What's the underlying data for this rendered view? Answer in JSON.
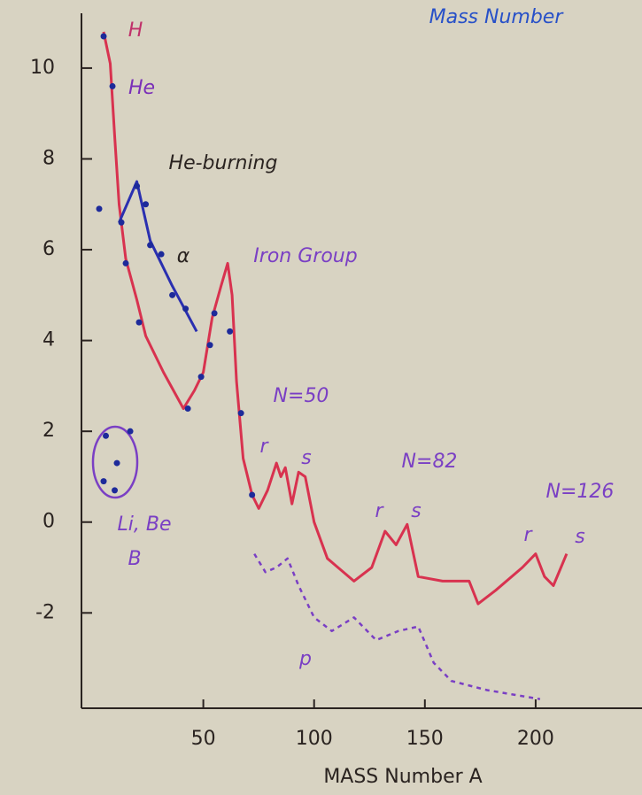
{
  "chart_data": {
    "type": "line",
    "title": "Mass Number",
    "x_label": "MASS Number A",
    "xlim": [
      -5,
      248
    ],
    "ylim": [
      -4.1,
      11.5
    ],
    "xticks": [
      50,
      100,
      150,
      200
    ],
    "yticks": [
      10,
      8,
      6,
      4,
      2,
      0,
      -2
    ],
    "series": [
      {
        "color": "#d8324f",
        "style": "line",
        "x": [
          5,
          8,
          10,
          12,
          15,
          20,
          24,
          32,
          41,
          46,
          50,
          54,
          58,
          61,
          63,
          65,
          68,
          72,
          75,
          79,
          83,
          85,
          87,
          90,
          93,
          96,
          100,
          106,
          118,
          126,
          132,
          137,
          142,
          147,
          158,
          170,
          174,
          182,
          194,
          200,
          204,
          208,
          214
        ],
        "values": [
          10.8,
          10.1,
          8.5,
          7.0,
          5.8,
          4.9,
          4.1,
          3.3,
          2.5,
          2.9,
          3.3,
          4.5,
          5.2,
          5.7,
          5.0,
          3.1,
          1.4,
          0.6,
          0.3,
          0.7,
          1.3,
          1.0,
          1.2,
          0.4,
          1.1,
          1.0,
          0,
          -0.8,
          -1.3,
          -1.0,
          -0.2,
          -0.5,
          -0.05,
          -1.2,
          -1.3,
          -1.3,
          -1.8,
          -1.5,
          -1.0,
          -0.7,
          -1.2,
          -1.4,
          -0.7
        ]
      },
      {
        "color": "#2a2fb0",
        "style": "line",
        "x": [
          12,
          20,
          26,
          36,
          47
        ],
        "values": [
          6.6,
          7.5,
          6.2,
          5.2,
          4.2
        ]
      },
      {
        "color": "#7a3fc4",
        "style": "dashed",
        "x": [
          73,
          78,
          83,
          88,
          93,
          100,
          108,
          118,
          128,
          138,
          147,
          154,
          162,
          178,
          190,
          202
        ],
        "values": [
          -0.7,
          -1.1,
          -1.0,
          -0.8,
          -1.4,
          -2.1,
          -2.4,
          -2.1,
          -2.6,
          -2.4,
          -2.3,
          -3.1,
          -3.5,
          -3.7,
          -3.8,
          -3.9
        ]
      },
      {
        "color": "#1d2a9a",
        "style": "markers",
        "x": [
          5,
          9,
          3,
          13,
          15,
          20,
          24,
          21,
          26,
          31,
          36,
          42,
          43,
          49,
          53,
          55,
          62,
          67,
          72,
          6,
          11,
          5,
          10,
          17
        ],
        "values": [
          10.7,
          9.6,
          6.9,
          6.6,
          5.7,
          7.4,
          7.0,
          4.4,
          6.1,
          5.9,
          5.0,
          4.7,
          2.5,
          3.2,
          3.9,
          4.6,
          4.2,
          2.4,
          0.6,
          1.9,
          1.3,
          0.9,
          0.7,
          2.0
        ]
      }
    ],
    "annotations": [
      "H",
      "He",
      "He-burning",
      "α",
      "Iron Group",
      "N=50",
      "r",
      "s",
      "N=82",
      "r",
      "s",
      "N=126",
      "r",
      "s",
      "Li, Be",
      "B",
      "p"
    ]
  }
}
